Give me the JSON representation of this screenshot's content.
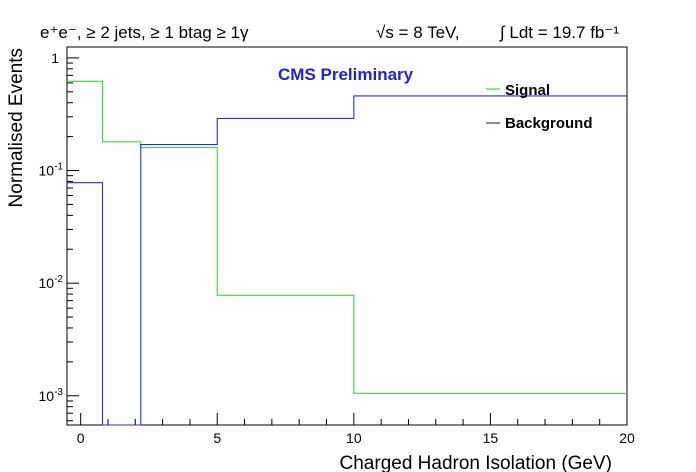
{
  "chart_data": {
    "type": "line",
    "title": "",
    "header": {
      "channel": "e⁺e⁻, ≥ 2 jets, ≥ 1 btag ≥ 1γ",
      "energy": "√s = 8 TeV,",
      "lumi": "∫ Ldt = 19.7 fb⁻¹"
    },
    "annotation": "CMS Preliminary",
    "xlabel": "Charged Hadron Isolation (GeV)",
    "ylabel": "Normalised Events",
    "xlim": [
      -0.5,
      20
    ],
    "ylim": [
      0.00055,
      1.25
    ],
    "yscale": "log",
    "grid": false,
    "legend_position": "top-right",
    "x_ticks": [
      {
        "value": 0,
        "label": "0"
      },
      {
        "value": 5,
        "label": "5"
      },
      {
        "value": 10,
        "label": "10"
      },
      {
        "value": 15,
        "label": "15"
      },
      {
        "value": 20,
        "label": "20"
      }
    ],
    "y_ticks": [
      {
        "value": 1,
        "base": "1",
        "exp": ""
      },
      {
        "value": 0.1,
        "base": "10",
        "exp": "-1"
      },
      {
        "value": 0.01,
        "base": "10",
        "exp": "-2"
      },
      {
        "value": 0.001,
        "base": "10",
        "exp": "-3"
      }
    ],
    "series": [
      {
        "name": "Signal",
        "color": "#33dd33",
        "bins": [
          {
            "low": -0.5,
            "high": 0.8,
            "value": 0.62
          },
          {
            "low": 0.8,
            "high": 2.2,
            "value": 0.18
          },
          {
            "low": 2.2,
            "high": 5,
            "value": 0.16
          },
          {
            "low": 5,
            "high": 10,
            "value": 0.0078
          },
          {
            "low": 10,
            "high": 20,
            "value": 0.00105
          }
        ]
      },
      {
        "name": "Background",
        "color": "#2233cc",
        "bins": [
          {
            "low": -0.5,
            "high": 0.8,
            "value": 0.078
          },
          {
            "low": 0.8,
            "high": 2.2,
            "value": 0
          },
          {
            "low": 2.2,
            "high": 5,
            "value": 0.17
          },
          {
            "low": 5,
            "high": 10,
            "value": 0.29
          },
          {
            "low": 10,
            "high": 20,
            "value": 0.46
          }
        ]
      }
    ]
  }
}
